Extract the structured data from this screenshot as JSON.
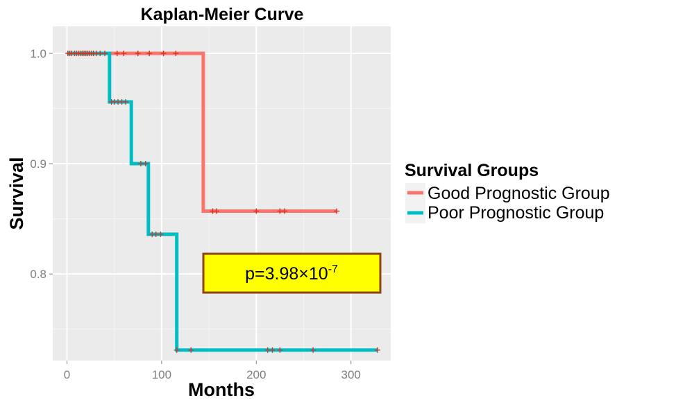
{
  "chart_data": {
    "type": "line",
    "title": "Kaplan-Meier Curve",
    "xlabel": "Months",
    "ylabel": "Survival",
    "xlim": [
      -15,
      342
    ],
    "ylim": [
      0.7215,
      1.0245
    ],
    "x_ticks": [
      0,
      100,
      200,
      300
    ],
    "y_ticks": [
      0.8,
      0.9,
      1.0
    ],
    "x_tick_labels": [
      "0",
      "100",
      "200",
      "300"
    ],
    "y_tick_labels": [
      "0.8",
      "0.9",
      "1.0"
    ],
    "grid": true,
    "legend_title": "Survival Groups",
    "legend_position": "right",
    "series": [
      {
        "name": "Good Prognostic Group",
        "color": "#f8766d",
        "step_points": [
          [
            0,
            1.0
          ],
          [
            144,
            1.0
          ],
          [
            144,
            0.857
          ],
          [
            285,
            0.857
          ]
        ],
        "censored": [
          [
            1,
            1.0
          ],
          [
            3,
            1.0
          ],
          [
            5,
            1.0
          ],
          [
            8,
            1.0
          ],
          [
            10,
            1.0
          ],
          [
            12,
            1.0
          ],
          [
            14,
            1.0
          ],
          [
            16,
            1.0
          ],
          [
            18,
            1.0
          ],
          [
            20,
            1.0
          ],
          [
            22,
            1.0
          ],
          [
            24,
            1.0
          ],
          [
            26,
            1.0
          ],
          [
            28,
            1.0
          ],
          [
            31,
            1.0
          ],
          [
            35,
            1.0
          ],
          [
            40,
            1.0
          ],
          [
            53,
            1.0
          ],
          [
            60,
            1.0
          ],
          [
            75,
            1.0
          ],
          [
            87,
            1.0
          ],
          [
            102,
            1.0
          ],
          [
            115,
            1.0
          ],
          [
            154,
            0.857
          ],
          [
            158,
            0.857
          ],
          [
            200,
            0.857
          ],
          [
            225,
            0.857
          ],
          [
            230,
            0.857
          ],
          [
            285,
            0.857
          ]
        ]
      },
      {
        "name": "Poor Prognostic Group",
        "color": "#00bfc4",
        "step_points": [
          [
            0,
            1.0
          ],
          [
            45,
            1.0
          ],
          [
            45,
            0.956
          ],
          [
            68,
            0.956
          ],
          [
            68,
            0.9
          ],
          [
            86,
            0.9
          ],
          [
            86,
            0.836
          ],
          [
            116,
            0.836
          ],
          [
            116,
            0.731
          ],
          [
            328,
            0.731
          ]
        ],
        "censored": [
          [
            47,
            0.956
          ],
          [
            50,
            0.956
          ],
          [
            54,
            0.956
          ],
          [
            58,
            0.956
          ],
          [
            62,
            0.956
          ],
          [
            78,
            0.9
          ],
          [
            83,
            0.9
          ],
          [
            90,
            0.836
          ],
          [
            94,
            0.836
          ],
          [
            99,
            0.836
          ],
          [
            116,
            0.731
          ],
          [
            131,
            0.731
          ],
          [
            212,
            0.731
          ],
          [
            217,
            0.731
          ],
          [
            225,
            0.731
          ],
          [
            260,
            0.731
          ],
          [
            328,
            0.731
          ]
        ]
      }
    ],
    "annotation": {
      "prefix": "p=3.98×10",
      "exponent": "-7",
      "background": "#ffff00",
      "border": "#8b4513"
    }
  }
}
